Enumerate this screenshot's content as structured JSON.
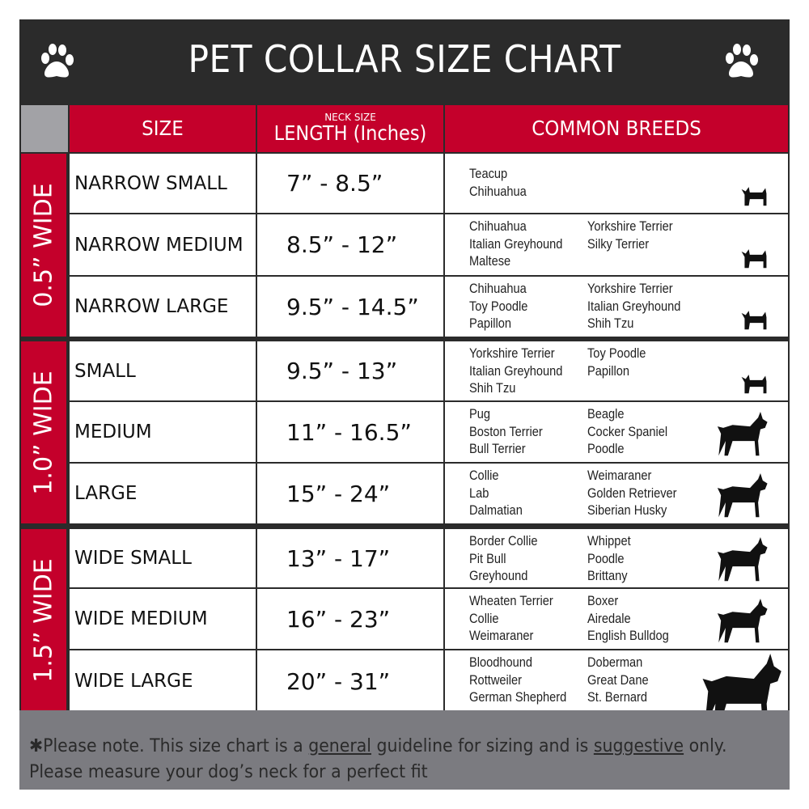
{
  "title": "PET COLLAR SIZE CHART",
  "columns": {
    "size": "SIZE",
    "length_sub": "NECK SIZE",
    "length": "LENGTH (Inches)",
    "breeds": "COMMON BREEDS"
  },
  "colors": {
    "red": "#c4002b",
    "dark": "#2b2b2b",
    "gray": "#7b7b80"
  },
  "groups": [
    {
      "label": "0.5” WIDE",
      "rows": [
        {
          "size": "NARROW SMALL",
          "length": "7” - 8.5”",
          "breeds_left": [
            "Teacup",
            "Chihuahua"
          ],
          "breeds_right": [],
          "icon": "yorkie-silhouette-icon"
        },
        {
          "size": "NARROW MEDIUM",
          "length": "8.5” - 12”",
          "breeds_left": [
            "Chihuahua",
            "Italian Greyhound",
            "Maltese"
          ],
          "breeds_right": [
            "Yorkshire Terrier",
            "Silky Terrier"
          ],
          "icon": "chihuahua-silhouette-icon"
        },
        {
          "size": "NARROW LARGE",
          "length": "9.5” - 14.5”",
          "breeds_left": [
            "Chihuahua",
            "Toy Poodle",
            "Papillon"
          ],
          "breeds_right": [
            "Yorkshire Terrier",
            "Italian Greyhound",
            "Shih Tzu"
          ],
          "icon": "pomeranian-silhouette-icon"
        }
      ]
    },
    {
      "label": "1.0” WIDE",
      "rows": [
        {
          "size": "SMALL",
          "length": "9.5” - 13”",
          "breeds_left": [
            "Yorkshire Terrier",
            "Italian Greyhound",
            "Shih Tzu"
          ],
          "breeds_right": [
            "Toy Poodle",
            "Papillon"
          ],
          "icon": "pomeranian-silhouette-icon"
        },
        {
          "size": "MEDIUM",
          "length": "11” - 16.5”",
          "breeds_left": [
            "Pug",
            "Boston Terrier",
            "Bull Terrier"
          ],
          "breeds_right": [
            "Beagle",
            "Cocker Spaniel",
            "Poodle"
          ],
          "icon": "dachshund-silhouette-icon"
        },
        {
          "size": "LARGE",
          "length": "15” - 24”",
          "breeds_left": [
            "Collie",
            "Lab",
            "Dalmatian"
          ],
          "breeds_right": [
            "Weimaraner",
            "Golden Retriever",
            "Siberian Husky"
          ],
          "icon": "shepherd-silhouette-icon"
        }
      ]
    },
    {
      "label": "1.5” WIDE",
      "rows": [
        {
          "size": "WIDE SMALL",
          "length": "13” - 17”",
          "breeds_left": [
            "Border Collie",
            "Pit Bull",
            "Greyhound"
          ],
          "breeds_right": [
            "Whippet",
            "Poodle",
            "Brittany"
          ],
          "icon": "bulldog-silhouette-icon"
        },
        {
          "size": "WIDE MEDIUM",
          "length": "16” - 23”",
          "breeds_left": [
            "Wheaten Terrier",
            "Collie",
            "Weimaraner"
          ],
          "breeds_right": [
            "Boxer",
            "Airedale",
            "English Bulldog"
          ],
          "icon": "pitbull-silhouette-icon"
        },
        {
          "size": "WIDE LARGE",
          "length": "20” - 31”",
          "breeds_left": [
            "Bloodhound",
            "Rottweiler",
            "German Shepherd"
          ],
          "breeds_right": [
            "Doberman",
            "Great Dane",
            "St. Bernard"
          ],
          "icon": "doberman-silhouette-icon"
        }
      ]
    }
  ],
  "footer": {
    "note_prefix": "✱Please note. This size chart is a ",
    "note_general": "general",
    "note_middle": " guideline for sizing and is ",
    "note_suggestive": "suggestive",
    "note_suffix": " only.",
    "line2": "Please measure your dog’s neck for a perfect fit"
  }
}
